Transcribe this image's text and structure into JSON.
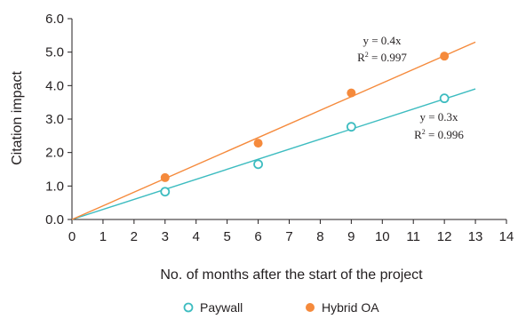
{
  "chart_data": {
    "type": "scatter",
    "xlabel": "No. of months after the start of the project",
    "ylabel": "Citation impact",
    "xlim": [
      0,
      14
    ],
    "ylim": [
      0.0,
      6.0
    ],
    "x_ticks": [
      "0",
      "1",
      "2",
      "3",
      "4",
      "5",
      "6",
      "7",
      "8",
      "9",
      "10",
      "11",
      "12",
      "13",
      "14"
    ],
    "y_ticks": [
      "0.0",
      "1.0",
      "2.0",
      "3.0",
      "4.0",
      "5.0",
      "6.0"
    ],
    "grid": false,
    "legend_position": "bottom-center",
    "series": [
      {
        "name": "Paywall",
        "marker": "open-circle",
        "color": "#3dbcc0",
        "points": [
          {
            "x": 3,
            "y": 0.83
          },
          {
            "x": 6,
            "y": 1.65
          },
          {
            "x": 9,
            "y": 2.77
          },
          {
            "x": 12,
            "y": 3.62
          }
        ],
        "fit": {
          "slope": 0.3,
          "x_range": [
            0,
            13
          ],
          "y_end": 3.9,
          "equation": "y = 0.3x",
          "r2_prefix": "R",
          "r2_superscript": "2",
          "r2_value": " = 0.996"
        }
      },
      {
        "name": "Hybrid OA",
        "marker": "filled-circle",
        "color": "#f58a3c",
        "points": [
          {
            "x": 3,
            "y": 1.25
          },
          {
            "x": 6,
            "y": 2.28
          },
          {
            "x": 9,
            "y": 3.78
          },
          {
            "x": 12,
            "y": 4.88
          }
        ],
        "fit": {
          "slope": 0.4,
          "x_range": [
            0,
            13
          ],
          "y_end": 5.3,
          "equation": "y = 0.4x",
          "r2_prefix": "R",
          "r2_superscript": "2",
          "r2_value": " = 0.997"
        }
      }
    ]
  }
}
